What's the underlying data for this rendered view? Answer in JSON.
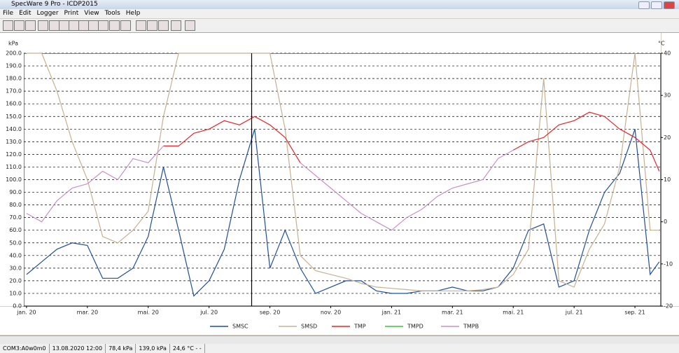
{
  "window": {
    "title": "SpecWare 9 Pro - ICDP2015",
    "menu": [
      "File",
      "Edit",
      "Logger",
      "Print",
      "View",
      "Tools",
      "Help"
    ]
  },
  "chart_data": {
    "type": "line",
    "ylabel": "kPa",
    "y2label": "°C",
    "x": [
      0,
      0.5,
      1,
      1.5,
      2,
      2.5,
      3,
      3.5,
      4,
      4.5,
      5,
      5.5,
      6,
      6.5,
      7,
      7.5,
      8,
      8.5,
      9,
      9.5,
      10,
      10.5,
      11,
      11.5,
      12,
      12.5,
      13,
      13.5,
      14,
      14.5,
      15,
      15.5,
      16,
      16.5,
      17,
      17.5,
      18,
      18.5,
      19,
      19.5,
      20,
      20.5,
      20.8
    ],
    "xlim": [
      -0.09,
      20.85
    ],
    "xticks": [
      {
        "value": 0,
        "label": "jan. 20"
      },
      {
        "value": 2,
        "label": "mar. 20"
      },
      {
        "value": 4,
        "label": "mai. 20"
      },
      {
        "value": 6,
        "label": "jul. 20"
      },
      {
        "value": 8,
        "label": "sep. 20"
      },
      {
        "value": 10,
        "label": "nov. 20"
      },
      {
        "value": 12,
        "label": "jan. 21"
      },
      {
        "value": 14,
        "label": "mar. 21"
      },
      {
        "value": 16,
        "label": "mai. 21"
      },
      {
        "value": 18,
        "label": "jul. 21"
      },
      {
        "value": 20,
        "label": "sep. 21"
      }
    ],
    "ylim": [
      0,
      200
    ],
    "yticks": [
      {
        "value": 0,
        "label": "0.0"
      },
      {
        "value": 10,
        "label": "10.0"
      },
      {
        "value": 20,
        "label": "20.0"
      },
      {
        "value": 30,
        "label": "30.0"
      },
      {
        "value": 40,
        "label": "40.0"
      },
      {
        "value": 50,
        "label": "50.0"
      },
      {
        "value": 60,
        "label": "60.0"
      },
      {
        "value": 70,
        "label": "70.0"
      },
      {
        "value": 80,
        "label": "80.0"
      },
      {
        "value": 90,
        "label": "90.0"
      },
      {
        "value": 100,
        "label": "100.0"
      },
      {
        "value": 110,
        "label": "110.0"
      },
      {
        "value": 120,
        "label": "120.0"
      },
      {
        "value": 130,
        "label": "130.0"
      },
      {
        "value": 140,
        "label": "140.0"
      },
      {
        "value": 150,
        "label": "150.0"
      },
      {
        "value": 160,
        "label": "160.0"
      },
      {
        "value": 170,
        "label": "170.0"
      },
      {
        "value": 180,
        "label": "180.0"
      },
      {
        "value": 190,
        "label": "190.0"
      },
      {
        "value": 200,
        "label": "200.0"
      }
    ],
    "y2lim": [
      -20,
      40
    ],
    "y2ticks": [
      -20,
      -10,
      0,
      10,
      20,
      30,
      40
    ],
    "grid": true,
    "cursor": 7.4,
    "series": [
      {
        "name": "SMSC",
        "color": "#1f4e9c",
        "values": [
          25,
          35,
          45,
          50,
          48,
          22,
          22,
          30,
          55,
          110,
          60,
          8,
          20,
          45,
          100,
          140,
          30,
          60,
          30,
          10,
          15,
          20,
          20,
          12,
          10,
          10,
          12,
          12,
          15,
          12,
          12,
          15,
          30,
          60,
          65,
          15,
          20,
          60,
          90,
          105,
          140,
          25,
          35
        ]
      },
      {
        "name": "SMSD",
        "color": "#c8b090",
        "values": [
          200,
          200,
          170,
          130,
          100,
          55,
          50,
          60,
          75,
          150,
          200,
          200,
          200,
          200,
          200,
          200,
          200,
          140,
          40,
          28,
          25,
          22,
          18,
          15,
          14,
          13,
          12,
          12,
          12,
          12,
          13,
          15,
          25,
          45,
          180,
          20,
          15,
          45,
          65,
          110,
          200,
          60,
          60
        ]
      },
      {
        "name": "TMP",
        "color": "#e8262a",
        "axis": "y2",
        "values": [
          null,
          null,
          null,
          null,
          null,
          null,
          null,
          null,
          null,
          18,
          18,
          21,
          22,
          24,
          23,
          25,
          23,
          20,
          14,
          null,
          null,
          null,
          null,
          null,
          null,
          null,
          null,
          null,
          null,
          null,
          null,
          null,
          17,
          19,
          20,
          23,
          24,
          26,
          25,
          22,
          20,
          17,
          12
        ]
      },
      {
        "name": "TMPD",
        "color": "#40c040",
        "axis": "y2",
        "values": [
          null,
          null,
          null,
          null,
          null,
          null,
          null,
          null,
          null,
          null,
          null,
          null,
          null,
          null,
          null,
          null,
          null,
          null,
          null,
          null,
          null,
          null,
          null,
          null,
          null,
          null,
          null,
          null,
          null,
          null,
          null,
          null,
          null,
          null,
          null,
          null,
          null,
          null,
          null,
          null,
          null,
          null,
          null
        ]
      },
      {
        "name": "TMPB",
        "color": "#c890c8",
        "axis": "y2",
        "values": [
          2,
          0,
          5,
          8,
          9,
          12,
          10,
          15,
          14,
          18,
          null,
          null,
          null,
          null,
          null,
          null,
          null,
          null,
          14,
          11,
          8,
          5,
          2,
          0,
          -2,
          1,
          3,
          6,
          8,
          9,
          10,
          15,
          17,
          null,
          null,
          null,
          null,
          null,
          null,
          null,
          null,
          null,
          null
        ]
      }
    ]
  },
  "status": [
    "COM3:A0w0m0",
    "13.08.2020 12:00",
    "78,4 kPa",
    "139,0 kPa",
    "24,6 °C - -"
  ]
}
